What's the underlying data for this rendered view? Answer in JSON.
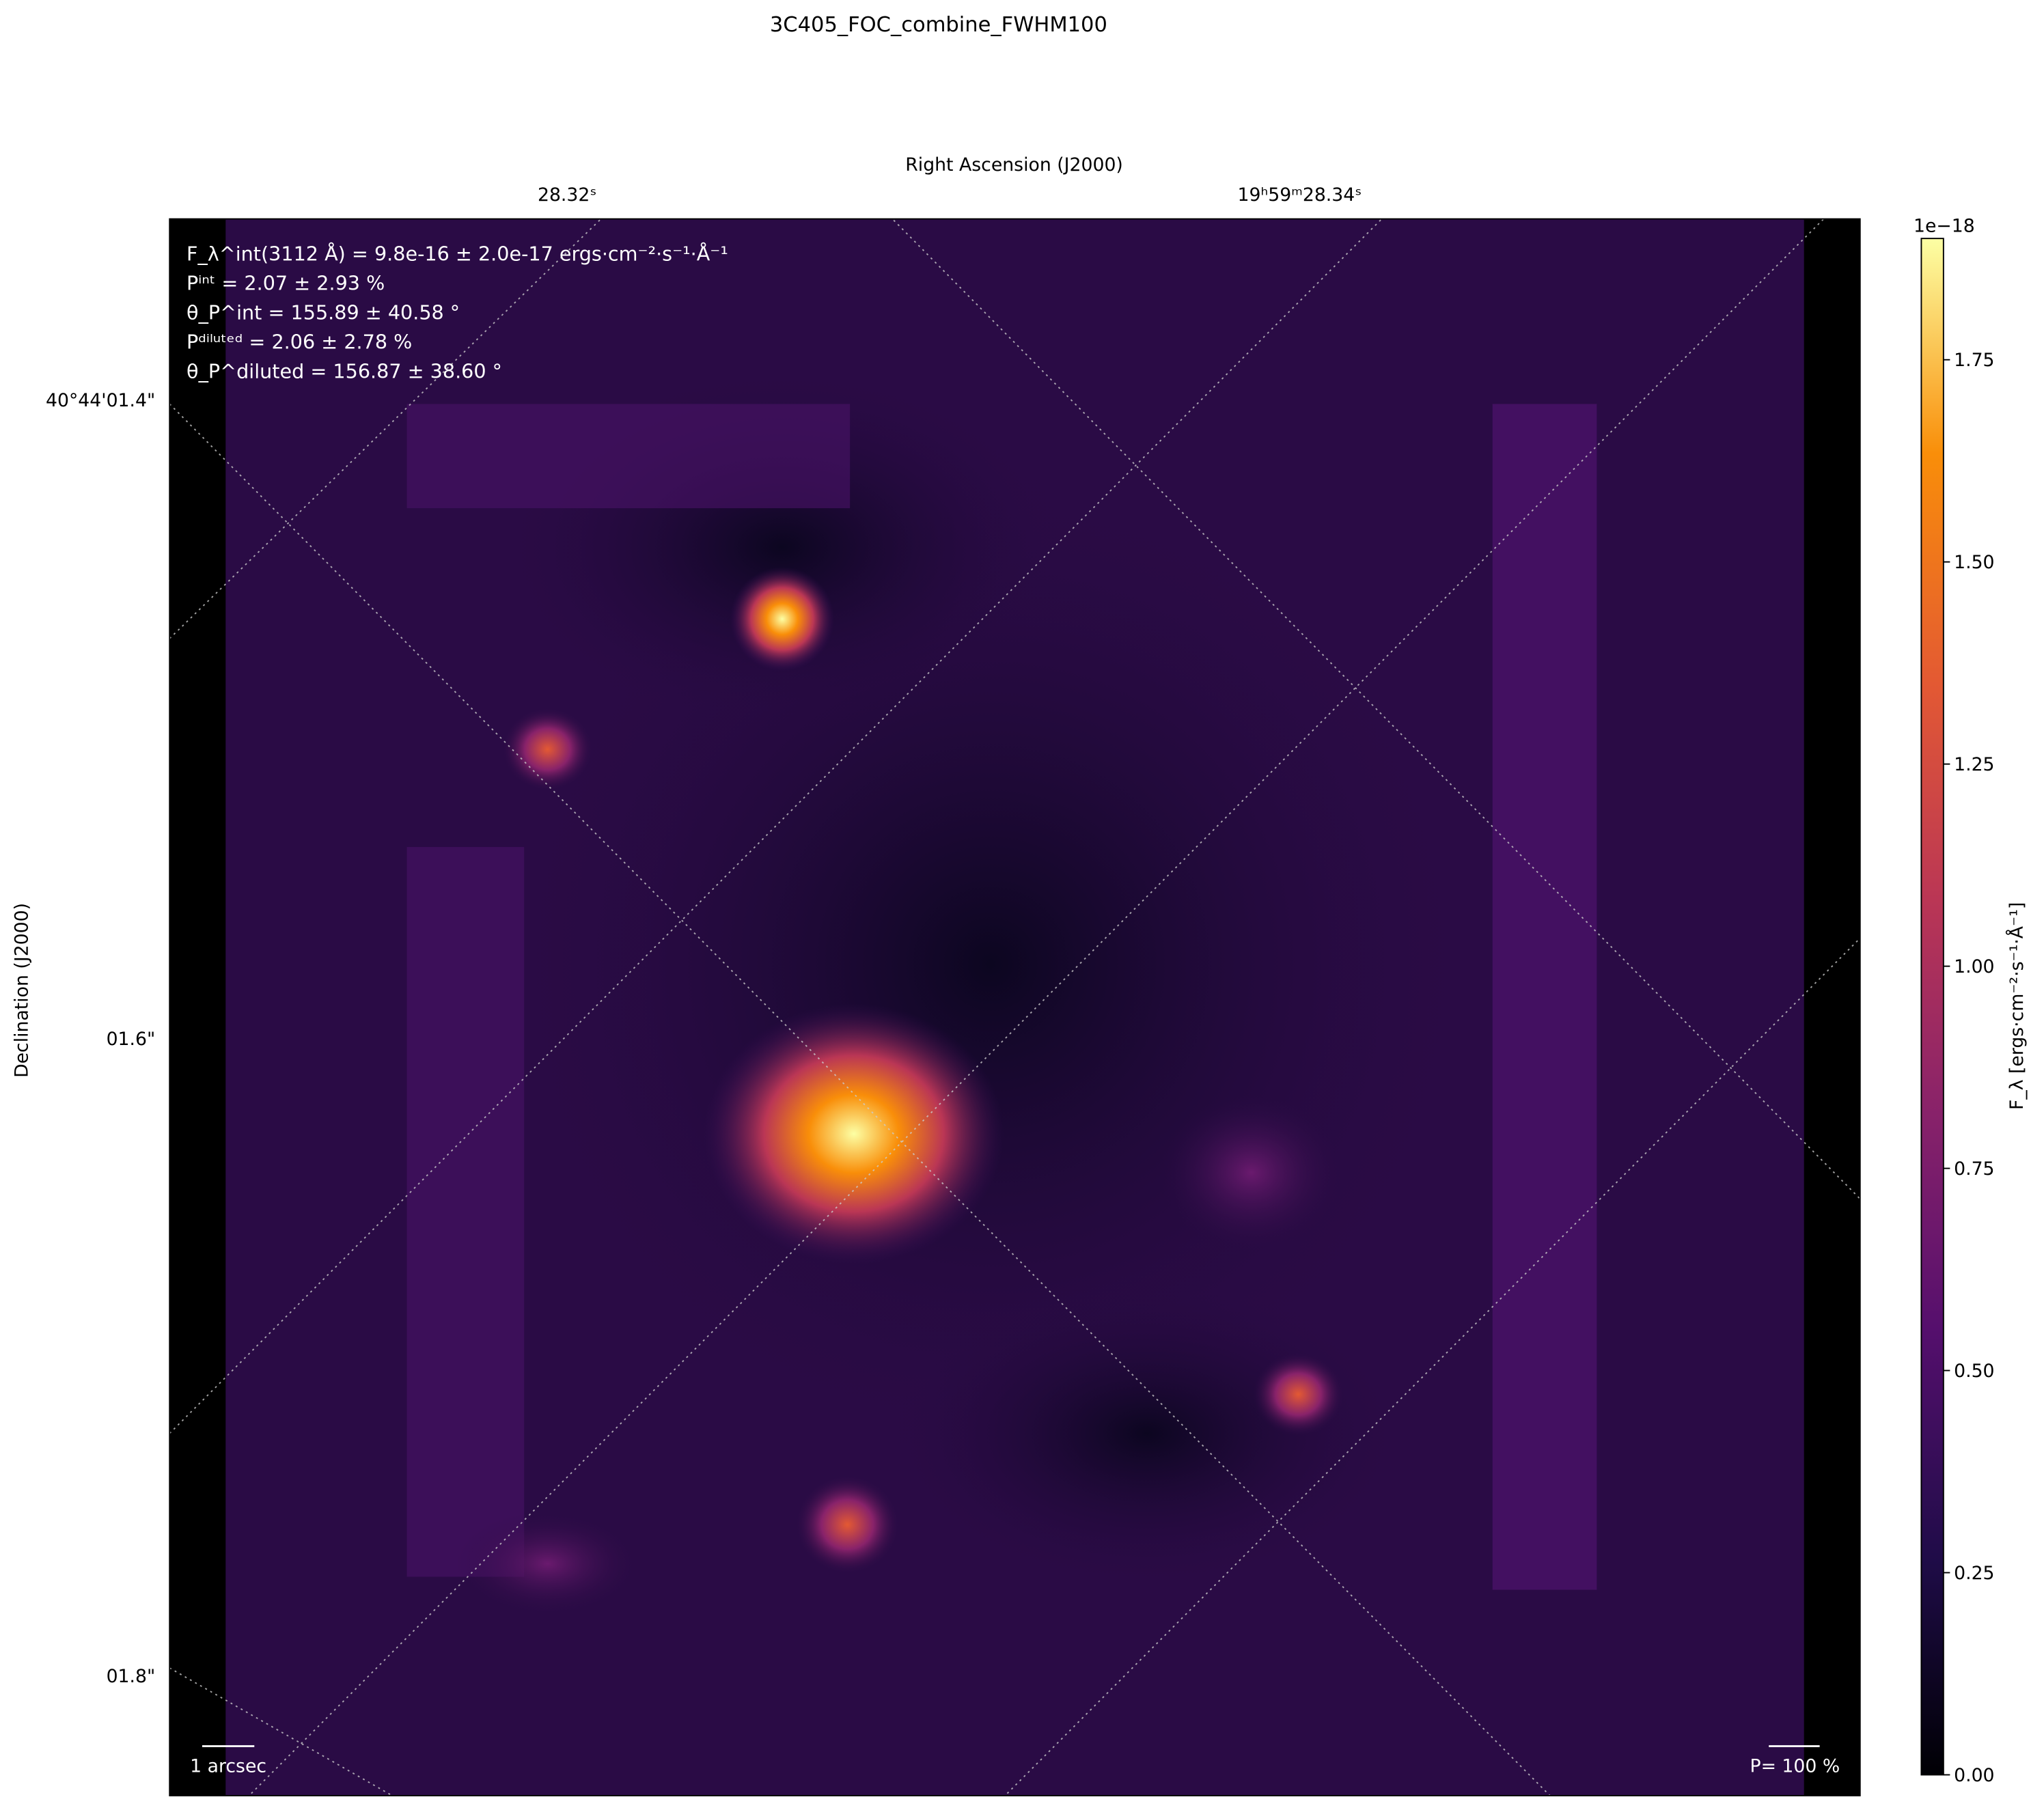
{
  "chart_data": {
    "type": "image",
    "title": "3C405_FOC_combine_FWHM100",
    "xlabel": "Right Ascension (J2000)",
    "ylabel": "Declination (J2000)",
    "xticks": [
      "28.32ˢ",
      "19ʰ59ᵐ28.34ˢ"
    ],
    "yticks": [
      "40°44'01.4\"",
      "01.6\"",
      "01.8\""
    ],
    "annotations": [
      "F_λ^int(3112 Å) = 9.8e-16 ± 2.0e-17 ergs·cm⁻²·s⁻¹·Å⁻¹",
      "Pⁱⁿᵗ = 2.07 ± 2.93 %",
      "θ_P^int = 155.89 ± 40.58 °",
      "Pᵈⁱˡᵘᵗᵉᵈ = 2.06 ± 2.78 %",
      "θ_P^diluted = 156.87 ± 38.60 °"
    ],
    "scalebar_label": "1 arcsec",
    "pol_scale_label": "P= 100 %",
    "colorbar": {
      "label": "F_λ [ergs·cm⁻²·s⁻¹·Å⁻¹]",
      "offset_text": "1e−18",
      "clim": [
        0,
        1.9
      ],
      "colormap": "inferno",
      "ticks": [
        {
          "value": 0,
          "label": "0.00"
        },
        {
          "value": 0.25,
          "label": "0.25"
        },
        {
          "value": 0.5,
          "label": "0.50"
        },
        {
          "value": 0.75,
          "label": "0.75"
        },
        {
          "value": 1,
          "label": "1.00"
        },
        {
          "value": 1.25,
          "label": "1.25"
        },
        {
          "value": 1.5,
          "label": "1.50"
        },
        {
          "value": 1.75,
          "label": "1.75"
        }
      ]
    }
  }
}
